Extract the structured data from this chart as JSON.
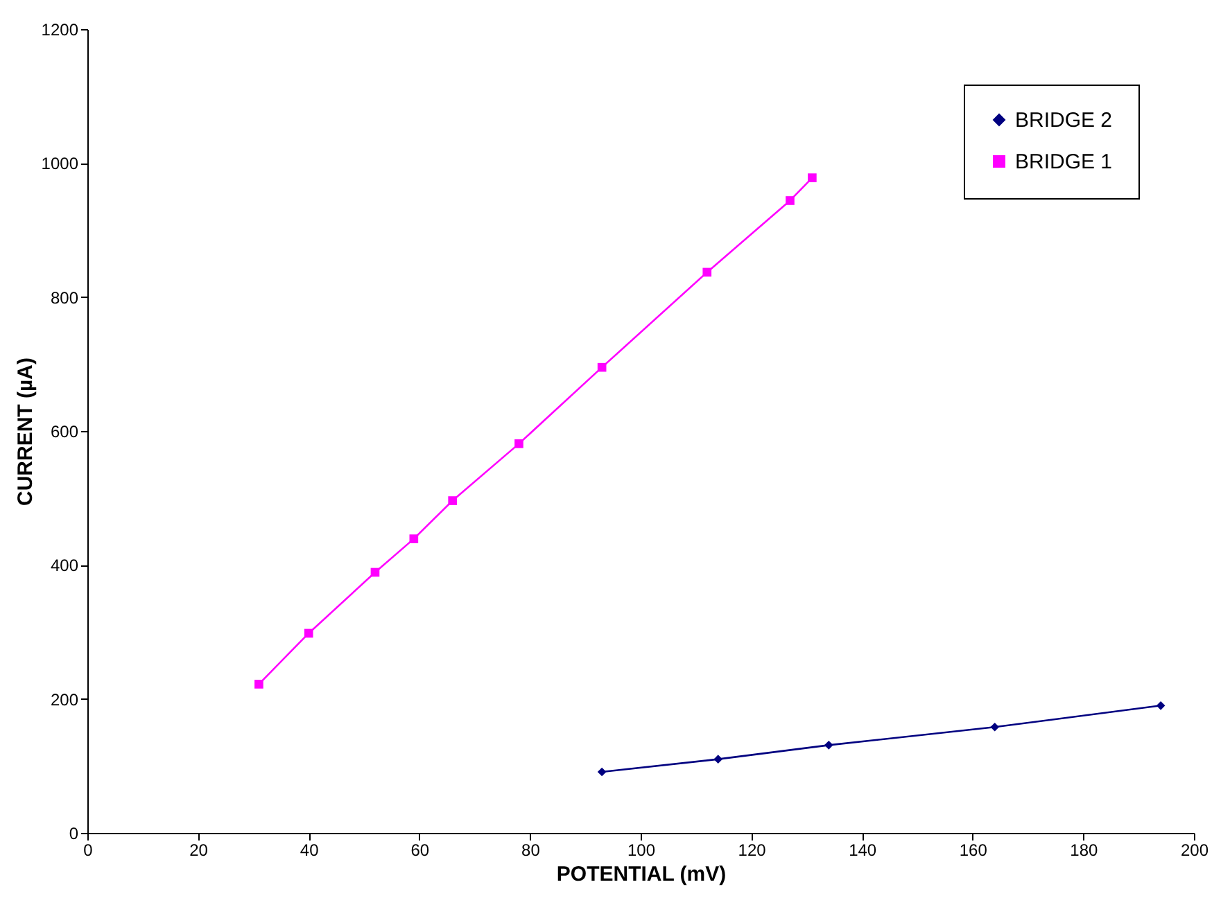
{
  "chart_data": {
    "type": "line",
    "xlabel": "POTENTIAL (mV)",
    "ylabel": "CURRENT (µA)",
    "xlim": [
      0,
      200
    ],
    "xticks": [
      0,
      20,
      40,
      60,
      80,
      100,
      120,
      140,
      160,
      180,
      200
    ],
    "ylim": [
      0,
      1200
    ],
    "yticks": [
      0,
      200,
      400,
      600,
      800,
      1000,
      1200
    ],
    "grid": false,
    "legend": "top right",
    "line_style": "solid",
    "series": [
      {
        "name": "BRIDGE 2",
        "color": "#000080",
        "marker": "diamond",
        "x": [
          93,
          114,
          134,
          164,
          194
        ],
        "values": [
          91,
          110,
          131,
          158,
          190
        ]
      },
      {
        "name": "BRIDGE 1",
        "color": "#ff00ff",
        "marker": "square",
        "x": [
          31,
          40,
          52,
          59,
          66,
          78,
          93,
          112,
          127,
          131
        ],
        "values": [
          222,
          298,
          389,
          439,
          496,
          581,
          695,
          837,
          944,
          978
        ]
      }
    ]
  }
}
